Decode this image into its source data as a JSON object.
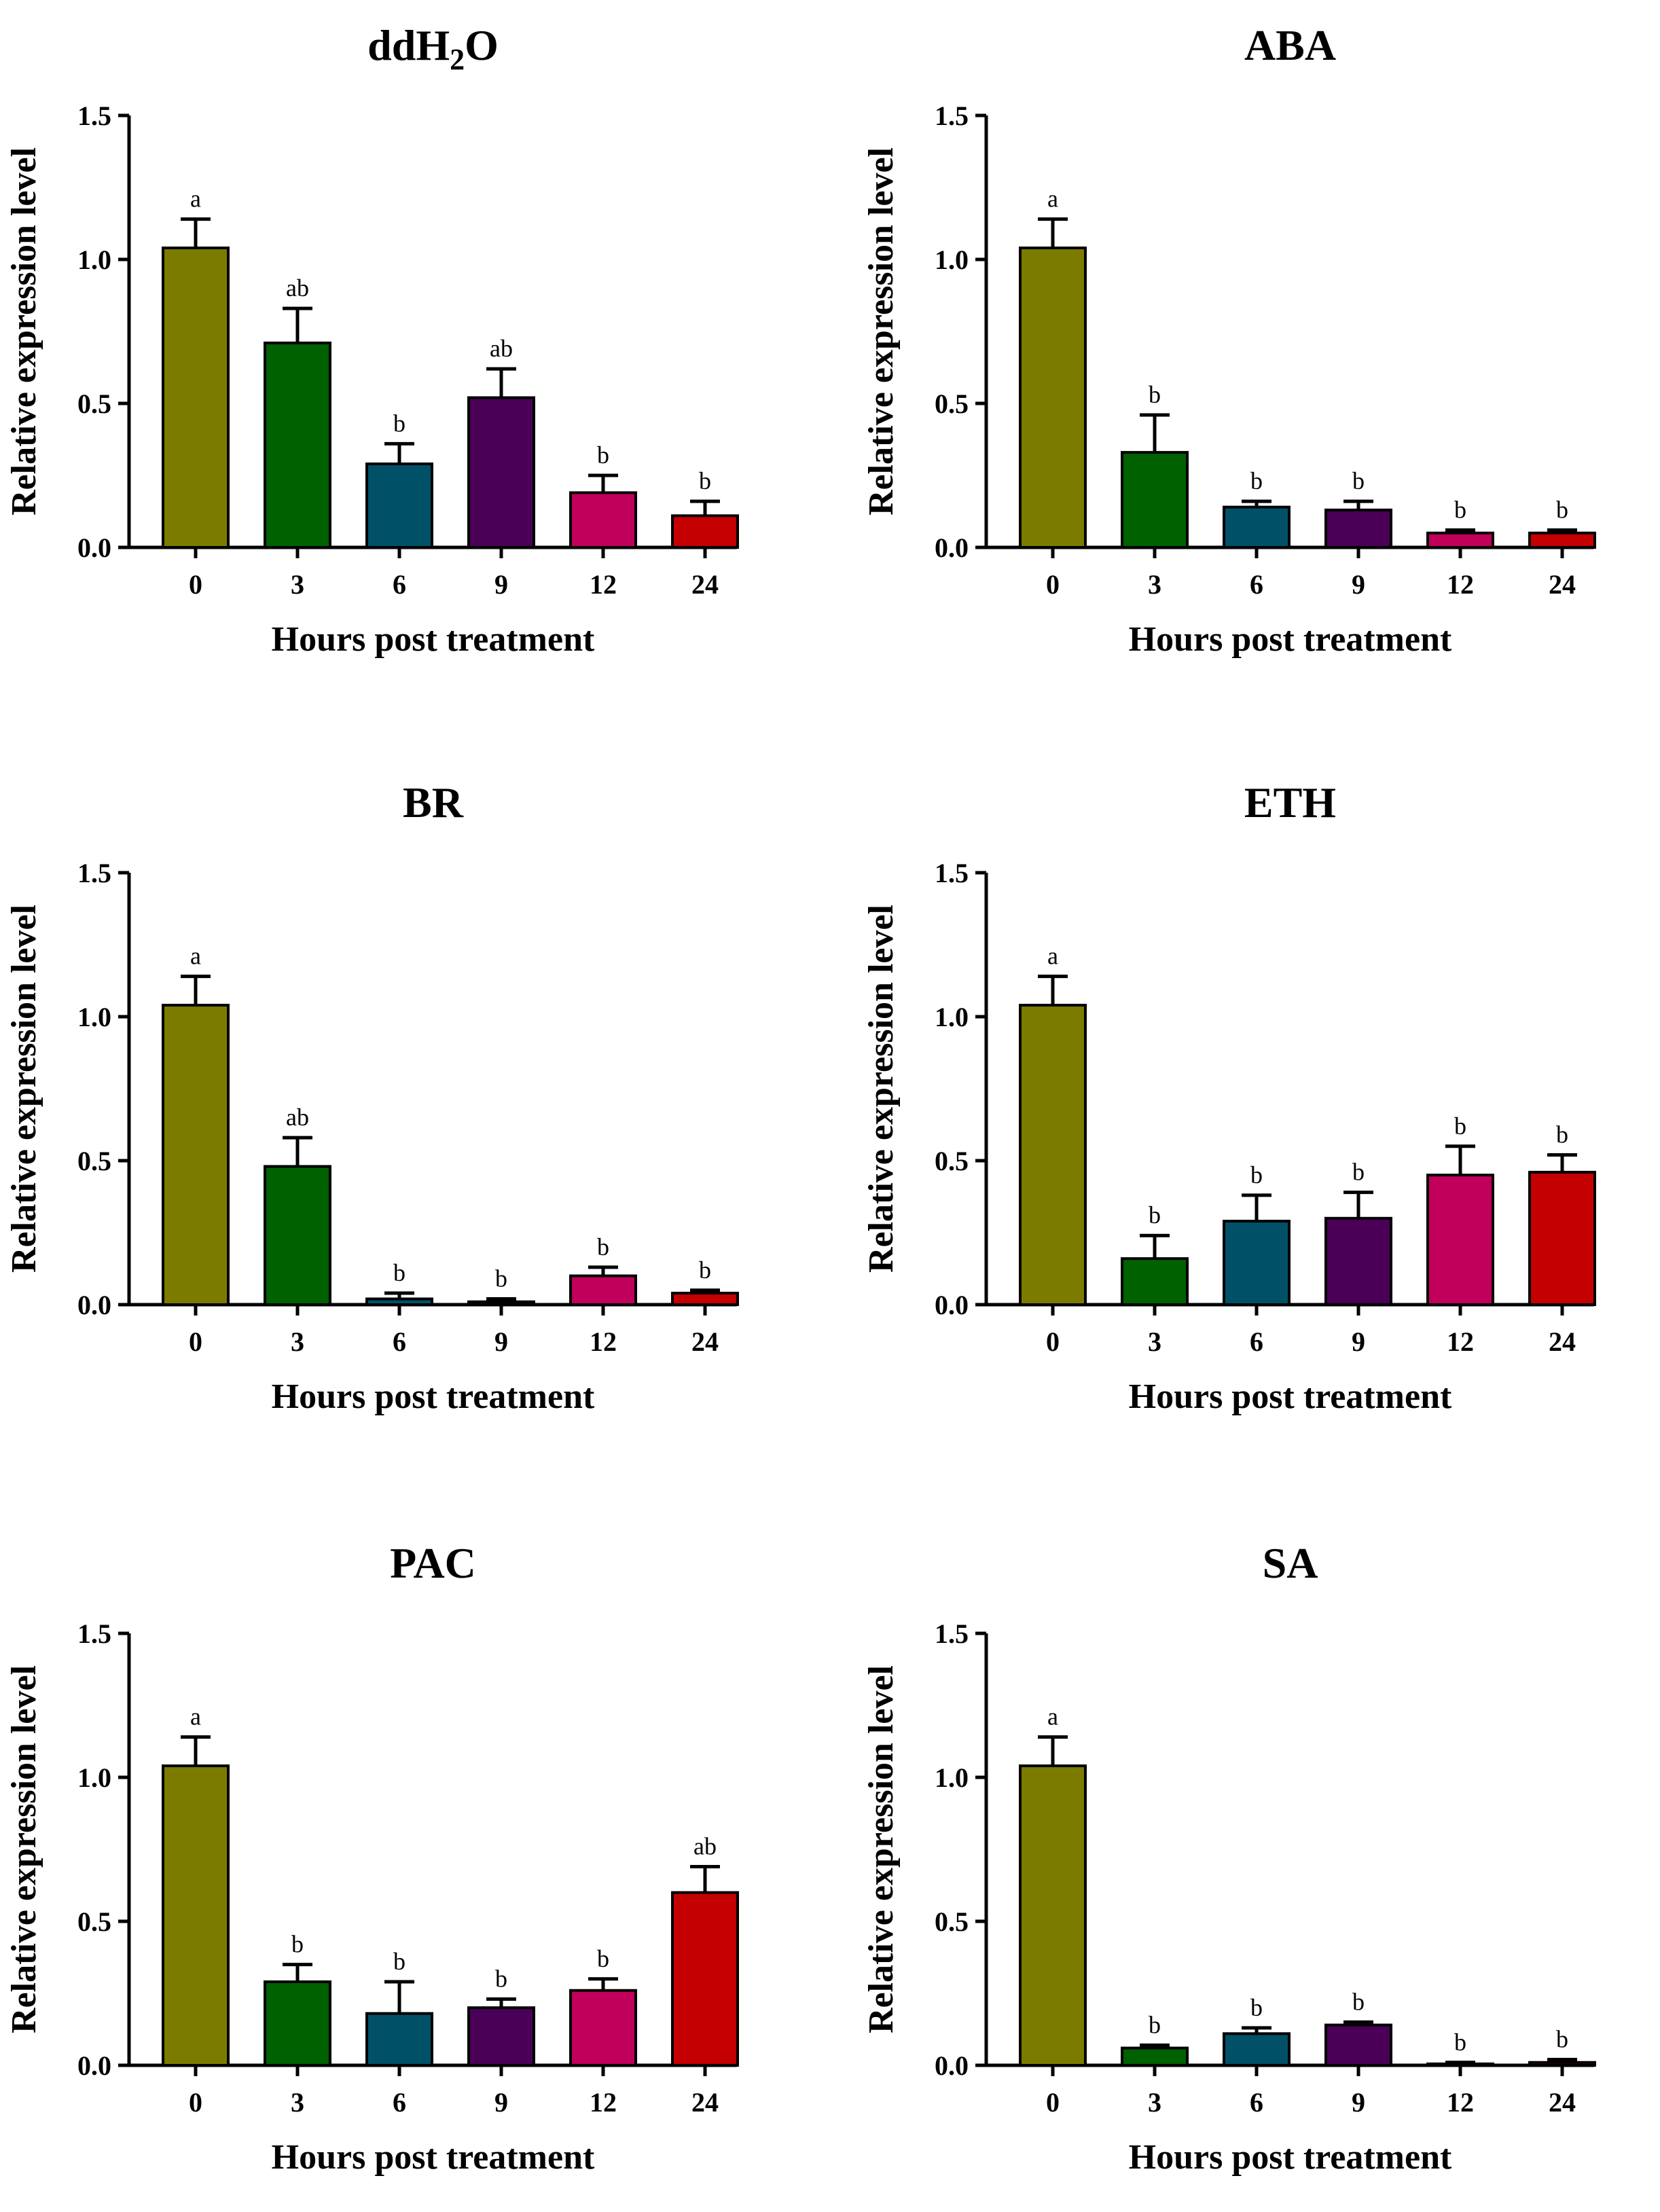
{
  "chart_data": [
    {
      "type": "bar",
      "title": "ddH2O",
      "title_main": "ddH",
      "title_sub": "2",
      "title_tail": "O",
      "xlabel": "Hours post treatment",
      "ylabel": "Relative expression level",
      "categories": [
        "0",
        "3",
        "6",
        "9",
        "12",
        "24"
      ],
      "values": [
        1.04,
        0.71,
        0.29,
        0.52,
        0.19,
        0.11
      ],
      "errors": [
        0.1,
        0.12,
        0.07,
        0.1,
        0.06,
        0.05
      ],
      "significance": [
        "a",
        "ab",
        "b",
        "ab",
        "b",
        "b"
      ],
      "ylim": [
        0,
        1.5
      ],
      "yticks": [
        "0.0",
        "0.5",
        "1.0",
        "1.5"
      ]
    },
    {
      "type": "bar",
      "title": "ABA",
      "xlabel": "Hours post treatment",
      "ylabel": "Relative expression level",
      "categories": [
        "0",
        "3",
        "6",
        "9",
        "12",
        "24"
      ],
      "values": [
        1.04,
        0.33,
        0.14,
        0.13,
        0.05,
        0.05
      ],
      "errors": [
        0.1,
        0.13,
        0.02,
        0.03,
        0.01,
        0.01
      ],
      "significance": [
        "a",
        "b",
        "b",
        "b",
        "b",
        "b"
      ],
      "ylim": [
        0,
        1.5
      ],
      "yticks": [
        "0.0",
        "0.5",
        "1.0",
        "1.5"
      ]
    },
    {
      "type": "bar",
      "title": "BR",
      "xlabel": "Hours post treatment",
      "ylabel": "Relative expression level",
      "categories": [
        "0",
        "3",
        "6",
        "9",
        "12",
        "24"
      ],
      "values": [
        1.04,
        0.48,
        0.02,
        0.01,
        0.1,
        0.04
      ],
      "errors": [
        0.1,
        0.1,
        0.02,
        0.01,
        0.03,
        0.01
      ],
      "significance": [
        "a",
        "ab",
        "b",
        "b",
        "b",
        "b"
      ],
      "ylim": [
        0,
        1.5
      ],
      "yticks": [
        "0.0",
        "0.5",
        "1.0",
        "1.5"
      ]
    },
    {
      "type": "bar",
      "title": "ETH",
      "xlabel": "Hours post treatment",
      "ylabel": "Relative expression level",
      "categories": [
        "0",
        "3",
        "6",
        "9",
        "12",
        "24"
      ],
      "values": [
        1.04,
        0.16,
        0.29,
        0.3,
        0.45,
        0.46
      ],
      "errors": [
        0.1,
        0.08,
        0.09,
        0.09,
        0.1,
        0.06
      ],
      "significance": [
        "a",
        "b",
        "b",
        "b",
        "b",
        "b"
      ],
      "ylim": [
        0,
        1.5
      ],
      "yticks": [
        "0.0",
        "0.5",
        "1.0",
        "1.5"
      ]
    },
    {
      "type": "bar",
      "title": "PAC",
      "xlabel": "Hours post treatment",
      "ylabel": "Relative expression level",
      "categories": [
        "0",
        "3",
        "6",
        "9",
        "12",
        "24"
      ],
      "values": [
        1.04,
        0.29,
        0.18,
        0.2,
        0.26,
        0.6
      ],
      "errors": [
        0.1,
        0.06,
        0.11,
        0.03,
        0.04,
        0.09
      ],
      "significance": [
        "a",
        "b",
        "b",
        "b",
        "b",
        "ab"
      ],
      "ylim": [
        0,
        1.5
      ],
      "yticks": [
        "0.0",
        "0.5",
        "1.0",
        "1.5"
      ]
    },
    {
      "type": "bar",
      "title": "SA",
      "xlabel": "Hours post treatment",
      "ylabel": "Relative expression level",
      "categories": [
        "0",
        "3",
        "6",
        "9",
        "12",
        "24"
      ],
      "values": [
        1.04,
        0.06,
        0.11,
        0.14,
        0.005,
        0.01
      ],
      "errors": [
        0.1,
        0.01,
        0.02,
        0.01,
        0.005,
        0.01
      ],
      "significance": [
        "a",
        "b",
        "b",
        "b",
        "b",
        "b"
      ],
      "ylim": [
        0,
        1.5
      ],
      "yticks": [
        "0.0",
        "0.5",
        "1.0",
        "1.5"
      ]
    }
  ],
  "colors": {
    "bars": [
      "#7b7b00",
      "#006100",
      "#005168",
      "#4a0057",
      "#c0005b",
      "#c40000"
    ],
    "stroke": "#000000"
  }
}
